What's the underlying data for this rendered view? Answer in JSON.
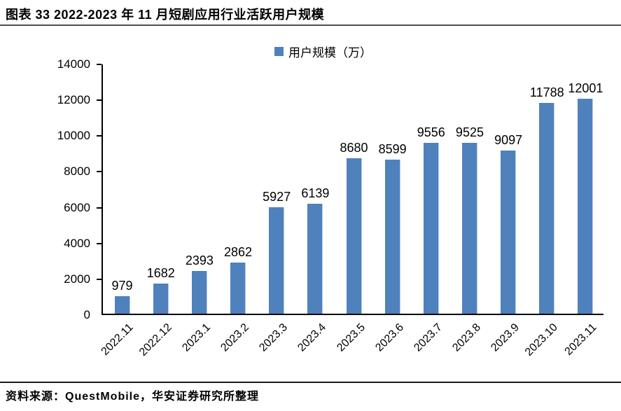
{
  "header": {
    "title": "图表 33 2022-2023 年 11 月短剧应用行业活跃用户规模"
  },
  "footer": {
    "source": "资料来源：QuestMobile，华安证券研究所整理"
  },
  "chart_data": {
    "type": "bar",
    "legend_label": "用户规模（万）",
    "legend_position": "top-center",
    "categories": [
      "2022.11",
      "2022.12",
      "2023.1",
      "2023.2",
      "2023.3",
      "2023.4",
      "2023.5",
      "2023.6",
      "2023.7",
      "2023.8",
      "2023.9",
      "2023.10",
      "2023.11"
    ],
    "values": [
      979,
      1682,
      2393,
      2862,
      5927,
      6139,
      8680,
      8599,
      9556,
      9525,
      9097,
      11788,
      12001
    ],
    "title": "",
    "xlabel": "",
    "ylabel": "",
    "ylim": [
      0,
      14000
    ],
    "yticks": [
      0,
      2000,
      4000,
      6000,
      8000,
      10000,
      12000,
      14000
    ],
    "grid": false,
    "data_labels": true,
    "bar_color": "#4f81bd",
    "axis_color": "#000000"
  }
}
